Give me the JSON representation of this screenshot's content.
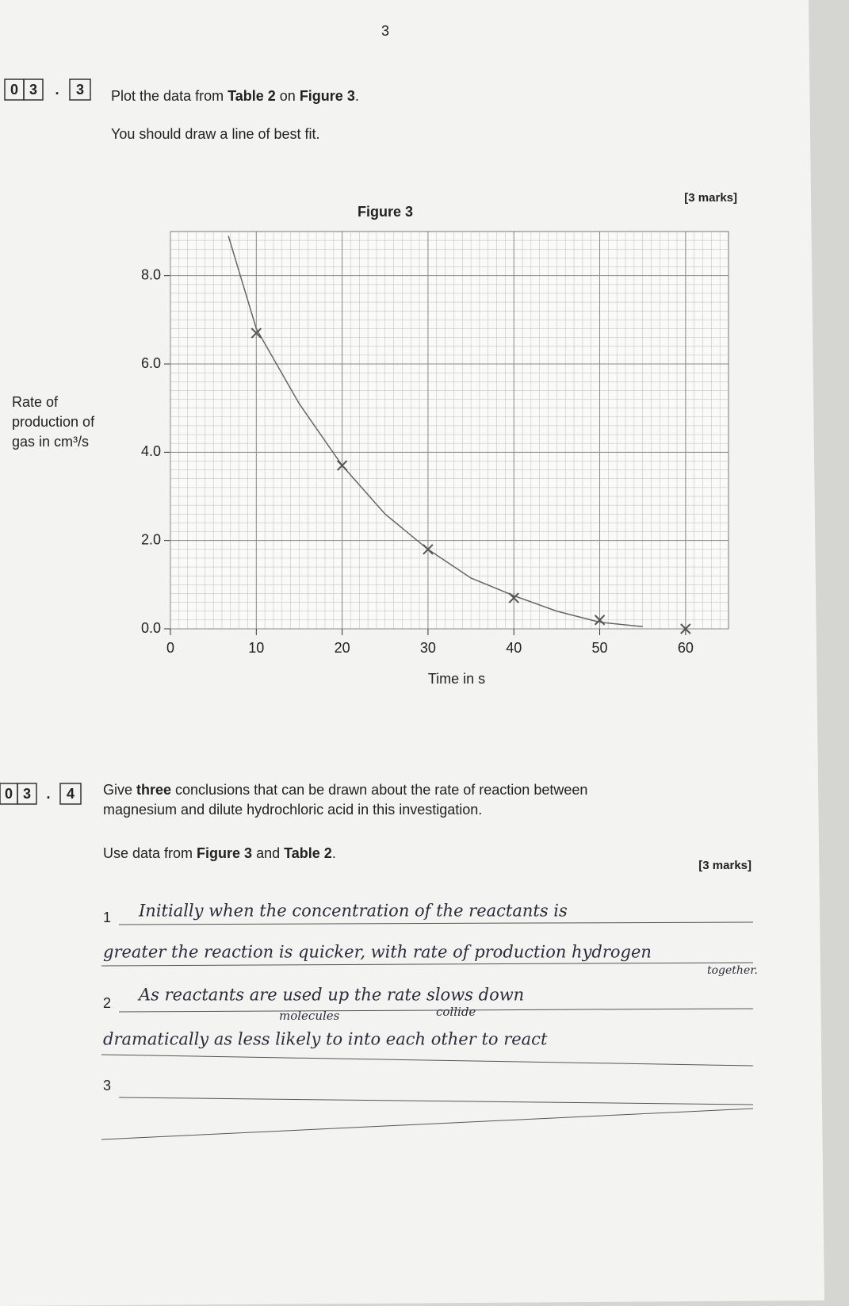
{
  "page_number": "3",
  "question_3": {
    "number": [
      "0",
      "3",
      ".",
      "3"
    ],
    "instruction": [
      "Plot the data from ",
      "Table 2",
      " on ",
      "Figure 3",
      "."
    ],
    "note": "You should draw a line of best fit.",
    "marks": "[3 marks]"
  },
  "chart_data": {
    "type": "scatter",
    "title": "Figure 3",
    "y_label": [
      "Rate of",
      "production of",
      "gas in cm³/s"
    ],
    "x_label": "Time in s",
    "xlim": [
      0,
      65
    ],
    "ylim": [
      0,
      9.0
    ],
    "xticks": [
      0,
      10,
      20,
      30,
      40,
      50,
      60
    ],
    "yticks": [
      {
        "value": 0,
        "label": "0.0"
      },
      {
        "value": 2,
        "label": "2.0"
      },
      {
        "value": 4,
        "label": "4.0"
      },
      {
        "value": 6,
        "label": "6.0"
      },
      {
        "value": 8,
        "label": "8.0"
      }
    ],
    "grid": true,
    "points": {
      "color": "#555555",
      "x": [
        10,
        20,
        30,
        40,
        50,
        60
      ],
      "y": [
        6.7,
        3.7,
        1.8,
        0.7,
        0.2,
        0.0
      ]
    },
    "fit": {
      "color": "#666666",
      "x": [
        6.75,
        10,
        15,
        20,
        25,
        30,
        35,
        40,
        45,
        50,
        55
      ],
      "y": [
        8.9,
        6.8,
        5.1,
        3.7,
        2.6,
        1.8,
        1.15,
        0.75,
        0.4,
        0.15,
        0.05
      ]
    }
  },
  "question_4": {
    "number": [
      "0",
      "3",
      ".",
      "4"
    ],
    "prompt": [
      [
        "Give ",
        "three",
        " conclusions that can be drawn about the rate of reaction between"
      ],
      [
        "magnesium and dilute hydrochloric acid in this investigation."
      ]
    ],
    "instruction": [
      "Use data from ",
      "Figure 3",
      " and ",
      "Table 2",
      "."
    ],
    "marks": "[3 marks]",
    "answers": [
      {
        "number": "1",
        "lines": [
          "Initially when the concentration of the reactants is",
          "greater the reaction is quicker, with rate of production hydrogen"
        ],
        "insertions": [
          "together."
        ]
      },
      {
        "number": "2",
        "lines": [
          "As reactants are used up the rate slows down",
          "dramatically as less likely to        into each other to react"
        ],
        "insertions": [
          "molecules",
          "collide"
        ]
      },
      {
        "number": "3",
        "lines": [],
        "insertions": []
      }
    ]
  }
}
